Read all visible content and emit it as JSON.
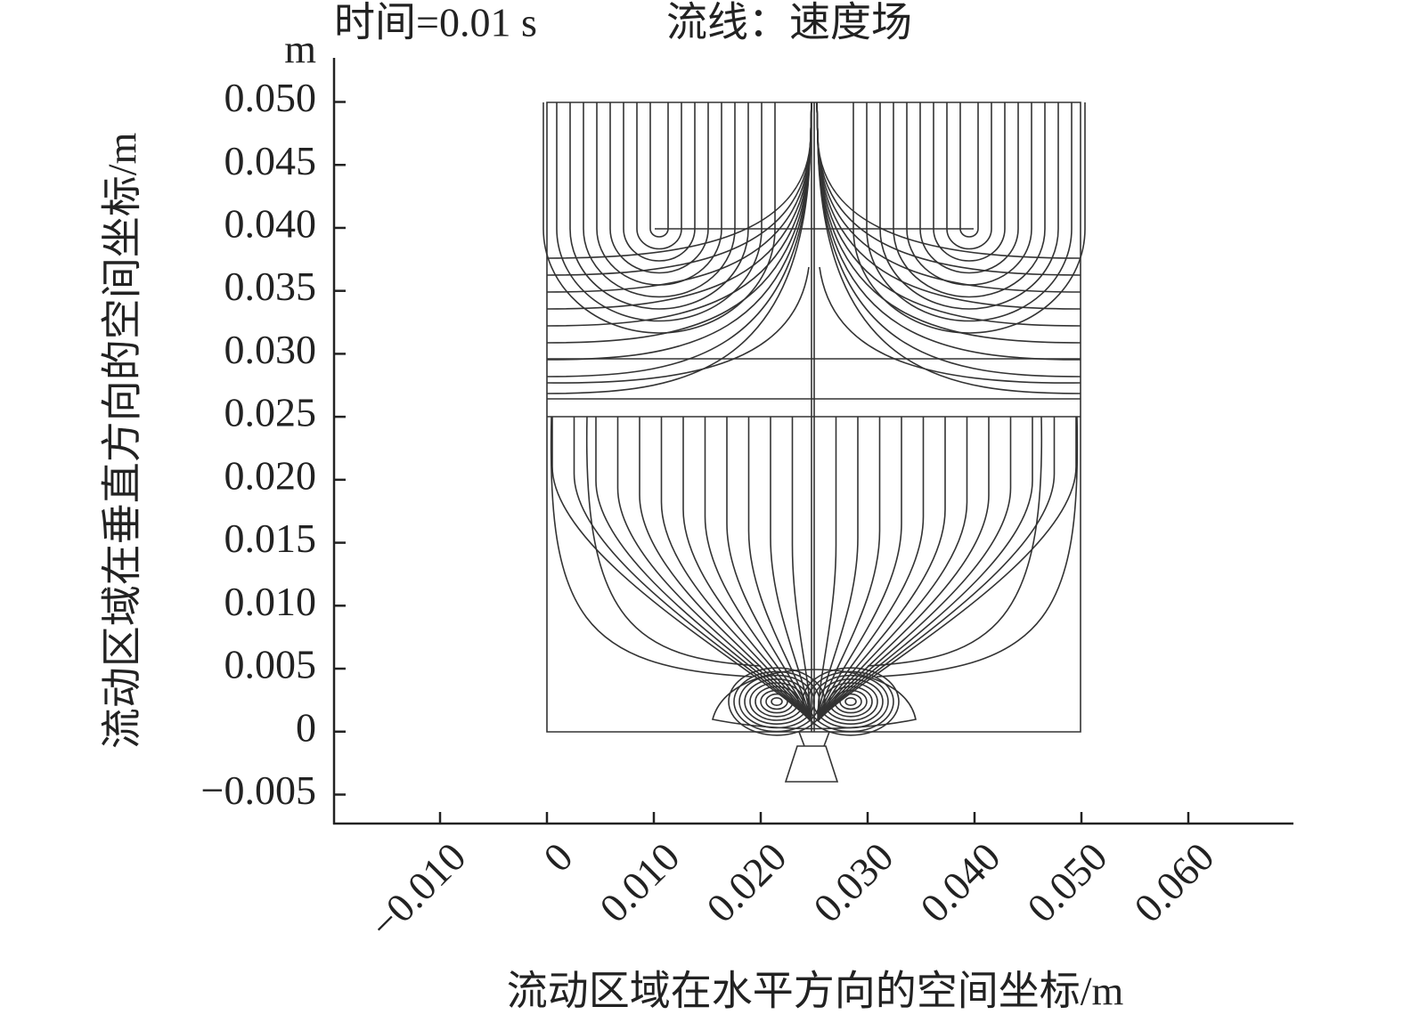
{
  "chart_data": {
    "type": "streamline",
    "title": "时间=0.01 s",
    "subtitle": "流线：速度场",
    "y_unit": "m",
    "x_label": "流动区域在水平方向的空间坐标/m",
    "y_label": "流动区域在垂直方向的空间坐标/m",
    "xlim": [
      -0.02,
      0.07
    ],
    "ylim": [
      -0.0073,
      0.0535
    ],
    "xticks": [
      {
        "value": -0.01,
        "label": "−0.010"
      },
      0,
      {
        "value": 0.01,
        "label": "0.010"
      },
      {
        "value": 0.02,
        "label": "0.020"
      },
      {
        "value": 0.03,
        "label": "0.030"
      },
      {
        "value": 0.04,
        "label": "0.040"
      },
      {
        "value": 0.05,
        "label": "0.050"
      },
      {
        "value": 0.06,
        "label": "0.060"
      }
    ],
    "yticks": [
      {
        "value": -0.005,
        "label": "−0.005"
      },
      0,
      {
        "value": 0.005,
        "label": "0.005"
      },
      {
        "value": 0.01,
        "label": "0.010"
      },
      {
        "value": 0.015,
        "label": "0.015"
      },
      {
        "value": 0.02,
        "label": "0.020"
      },
      {
        "value": 0.025,
        "label": "0.025"
      },
      {
        "value": 0.03,
        "label": "0.030"
      },
      {
        "value": 0.035,
        "label": "0.035"
      },
      {
        "value": 0.04,
        "label": "0.040"
      },
      {
        "value": 0.045,
        "label": "0.045"
      },
      {
        "value": 0.05,
        "label": "0.050"
      }
    ]
  }
}
